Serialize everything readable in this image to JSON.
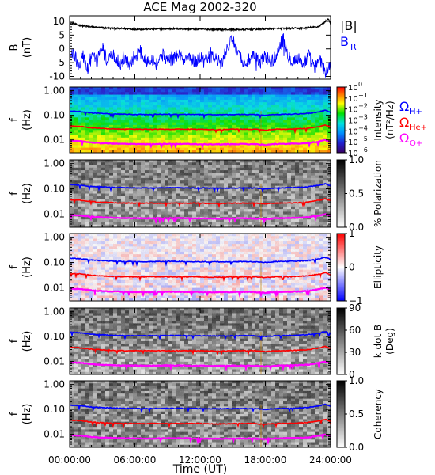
{
  "title": "ACE Mag 2002-320",
  "chart_data": [
    {
      "type": "line",
      "panel": "field",
      "ylabel": [
        "B",
        "(nT)"
      ],
      "ylim": [
        -11,
        12
      ],
      "yticks": [
        10,
        5,
        0,
        -5,
        -10
      ],
      "ytick_labels": [
        "10",
        "5",
        "0",
        "-5",
        "-10"
      ],
      "legend": {
        "absB": "|B|",
        "BR": "B",
        "BR_sub": "R"
      },
      "series": [
        {
          "name": "|B|",
          "color": "#000000",
          "x": [
            0,
            0.3,
            0.8,
            1.5,
            2.5,
            3.5,
            5,
            6.5,
            8,
            9.5,
            11,
            12.5,
            14,
            15.5,
            17,
            18.5,
            20,
            21.5,
            22.8,
            23.4,
            23.8,
            24
          ],
          "values": [
            9.5,
            9.3,
            8.6,
            8.2,
            7.8,
            7.5,
            7.3,
            7.1,
            7.2,
            7.3,
            7.2,
            7.1,
            7.0,
            7.0,
            7.1,
            7.3,
            7.4,
            7.5,
            8.0,
            9.5,
            11.0,
            9.0
          ]
        },
        {
          "name": "B_R",
          "color": "#0000ff",
          "x": [
            0,
            0.4,
            0.8,
            1.2,
            1.6,
            2.0,
            2.5,
            3.0,
            3.5,
            4.0,
            4.5,
            5.0,
            5.5,
            6.0,
            6.5,
            7.0,
            7.5,
            8.0,
            8.5,
            9.0,
            9.5,
            10.0,
            10.5,
            11.0,
            11.5,
            12.0,
            12.5,
            13.0,
            13.5,
            14.0,
            14.5,
            15.0,
            15.5,
            16.0,
            16.5,
            17.0,
            17.5,
            18.0,
            18.5,
            19.0,
            19.5,
            20.0,
            20.5,
            21.0,
            21.5,
            22.0,
            22.5,
            23.0,
            23.5,
            24.0
          ],
          "values": [
            -3.5,
            -1.5,
            -6.0,
            -2.0,
            -7.5,
            -3.0,
            -4.5,
            1.0,
            -5.0,
            -2.0,
            -6.5,
            -3.5,
            -5.5,
            -2.5,
            -1.0,
            -4.5,
            -3.0,
            -5.5,
            -2.0,
            -4.0,
            -3.5,
            -1.5,
            -4.5,
            -2.5,
            -5.0,
            -3.0,
            -4.5,
            -2.0,
            -4.0,
            -5.5,
            0.5,
            3.0,
            -1.0,
            -5.5,
            -4.0,
            -3.0,
            -5.0,
            -2.5,
            -4.5,
            -3.0,
            4.0,
            -1.5,
            -4.5,
            -3.5,
            -5.5,
            -2.5,
            -7.0,
            -4.0,
            -8.5,
            -6.0
          ]
        }
      ]
    },
    {
      "type": "heatmap",
      "panel": "intensity",
      "ylabel": [
        "f",
        "(Hz)"
      ],
      "colorbar_label": [
        "Intensity",
        "(nT²/Hz)"
      ],
      "colorbar_ticks": [
        {
          "label": "10",
          "exp": "0"
        },
        {
          "label": "10",
          "exp": "−1"
        },
        {
          "label": "10",
          "exp": "−2"
        },
        {
          "label": "10",
          "exp": "−3"
        },
        {
          "label": "10",
          "exp": "−4"
        },
        {
          "label": "10",
          "exp": "−5"
        },
        {
          "label": "10",
          "exp": "−6"
        }
      ],
      "legend": [
        {
          "label": "Ω",
          "sub": "H+",
          "color": "#0000ff"
        },
        {
          "label": "Ω",
          "sub": "He+",
          "color": "#ff0000"
        },
        {
          "label": "Ω",
          "sub": "O+",
          "color": "#ff00ff"
        }
      ]
    },
    {
      "type": "heatmap",
      "panel": "polarization",
      "ylabel": [
        "f",
        "(Hz)"
      ],
      "colorbar_label": [
        "% Polarization"
      ],
      "colorbar_ticks": [
        "1.0",
        "0.5",
        "0.0"
      ]
    },
    {
      "type": "heatmap",
      "panel": "ellipticity",
      "ylabel": [
        "f",
        "(Hz)"
      ],
      "colorbar_label": [
        "Ellipticity"
      ],
      "colorbar_ticks": [
        "1",
        "0",
        "−1"
      ]
    },
    {
      "type": "heatmap",
      "panel": "kdotb",
      "ylabel": [
        "f",
        "(Hz)"
      ],
      "colorbar_label": [
        "k dot B",
        "(Deg)"
      ],
      "colorbar_ticks": [
        "90",
        "60",
        "30",
        "0"
      ]
    },
    {
      "type": "heatmap",
      "panel": "coherency",
      "ylabel": [
        "f",
        "(Hz)"
      ],
      "colorbar_label": [
        "Coherency"
      ],
      "colorbar_ticks": [
        "1.0",
        "0.5",
        "0.0"
      ]
    }
  ],
  "frequency_axis": {
    "scale": "log",
    "ylim": [
      0.003,
      1.4
    ],
    "yticks": [
      1.0,
      0.1,
      0.01
    ],
    "ytick_labels": [
      "1.00",
      "0.10",
      "0.01"
    ]
  },
  "gyrofrequency_lines": {
    "x": [
      0,
      1,
      2,
      3,
      4,
      5,
      6,
      7,
      8,
      9,
      10,
      11,
      12,
      13,
      14,
      15,
      16,
      17,
      18,
      19,
      20,
      21,
      22,
      23,
      23.5,
      24
    ],
    "H+": [
      0.148,
      0.14,
      0.125,
      0.118,
      0.113,
      0.11,
      0.108,
      0.107,
      0.109,
      0.11,
      0.11,
      0.108,
      0.107,
      0.106,
      0.106,
      0.107,
      0.108,
      0.107,
      0.1,
      0.108,
      0.11,
      0.113,
      0.12,
      0.14,
      0.16,
      0.13
    ],
    "He+": [
      0.037,
      0.035,
      0.031,
      0.029,
      0.028,
      0.027,
      0.027,
      0.027,
      0.027,
      0.027,
      0.027,
      0.027,
      0.027,
      0.026,
      0.026,
      0.027,
      0.027,
      0.027,
      0.025,
      0.027,
      0.027,
      0.028,
      0.03,
      0.035,
      0.04,
      0.033
    ],
    "O+": [
      0.0092,
      0.0088,
      0.0078,
      0.0073,
      0.0071,
      0.0069,
      0.0068,
      0.0067,
      0.0068,
      0.0069,
      0.0069,
      0.0068,
      0.0067,
      0.0066,
      0.0066,
      0.0067,
      0.0068,
      0.0067,
      0.0063,
      0.0068,
      0.0069,
      0.0071,
      0.0075,
      0.0088,
      0.01,
      0.0083
    ]
  },
  "time_axis": {
    "xlim": [
      0,
      24
    ],
    "xticks": [
      0,
      6,
      12,
      18,
      24
    ],
    "xtick_labels": [
      "00:00:00",
      "06:00:00",
      "12:00:00",
      "18:00:00",
      "24:00:00"
    ],
    "xlabel": "Time (UT)"
  },
  "colors": {
    "H+": "#0000ff",
    "He+": "#ff0000",
    "O+": "#ff00ff",
    "absB": "#000000",
    "BR": "#0000ff"
  }
}
